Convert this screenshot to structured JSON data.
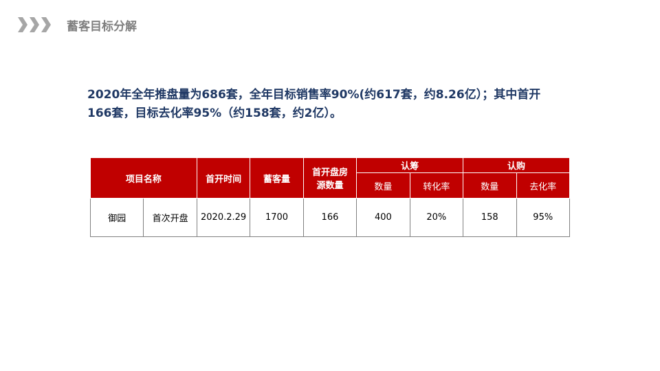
{
  "header": {
    "icon": "triple-chevron-right-icon",
    "title": "蓄客目标分解"
  },
  "summary": {
    "line1": "2020年全年推盘量为686套，全年目标销售率90%(约617套，约8.26亿）；其中首开",
    "line2": "166套，目标去化率95%（约158套，约2亿）。"
  },
  "table": {
    "headers": {
      "project_name": "项目名称",
      "open_time": "首开时间",
      "reserve": "蓄客量",
      "first_open_units": "首开盘房源数量",
      "rench": "认筹",
      "rengou": "认购",
      "rench_count": "数量",
      "rench_rate": "转化率",
      "rengou_count": "数量",
      "rengou_rate": "去化率"
    },
    "rows": [
      {
        "project": "御园",
        "phase": "首次开盘",
        "open_time": "2020.2.29",
        "reserve": "1700",
        "units": "166",
        "rench_count": "400",
        "rench_rate": "20%",
        "rengou_count": "158",
        "rengou_rate": "95%"
      }
    ]
  },
  "colors": {
    "header_bg": "#c00000",
    "summary_text": "#1f3864",
    "title_text": "#7f7f7f"
  }
}
